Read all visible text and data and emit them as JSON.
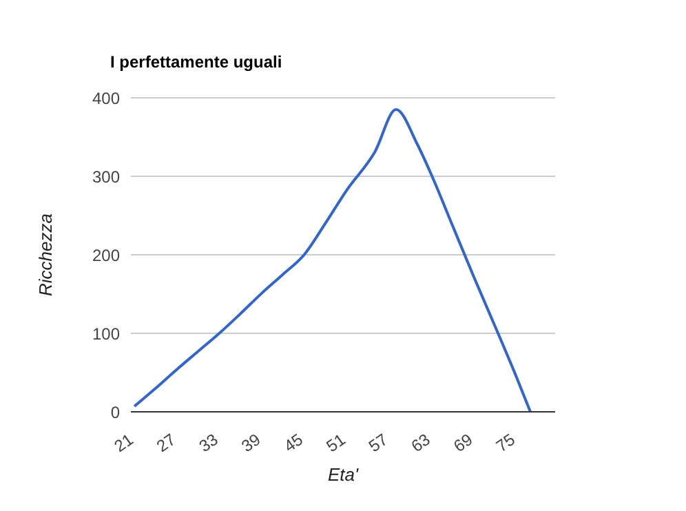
{
  "chart_data": {
    "type": "line",
    "title": "I perfettamente uguali",
    "xlabel": "Eta'",
    "ylabel": "Ricchezza",
    "x": [
      21,
      24,
      27,
      30,
      33,
      36,
      39,
      42,
      45,
      48,
      51,
      55,
      58,
      61,
      63,
      66,
      69,
      72,
      75,
      77
    ],
    "series": [
      {
        "color": "#3366cc",
        "values": [
          7,
          30,
          54,
          77,
          100,
          125,
          151,
          175,
          200,
          240,
          282,
          331,
          385,
          341,
          302,
          237,
          172,
          109,
          45,
          0
        ]
      }
    ],
    "xlim": [
      20.5,
      80.5
    ],
    "xticks": [
      21,
      27,
      33,
      39,
      45,
      51,
      57,
      63,
      69,
      75
    ],
    "ylim": [
      0,
      400
    ],
    "yticks": [
      0,
      100,
      200,
      300,
      400
    ],
    "grid": "y",
    "legend": false,
    "marker": "none",
    "line_style": "solid"
  }
}
